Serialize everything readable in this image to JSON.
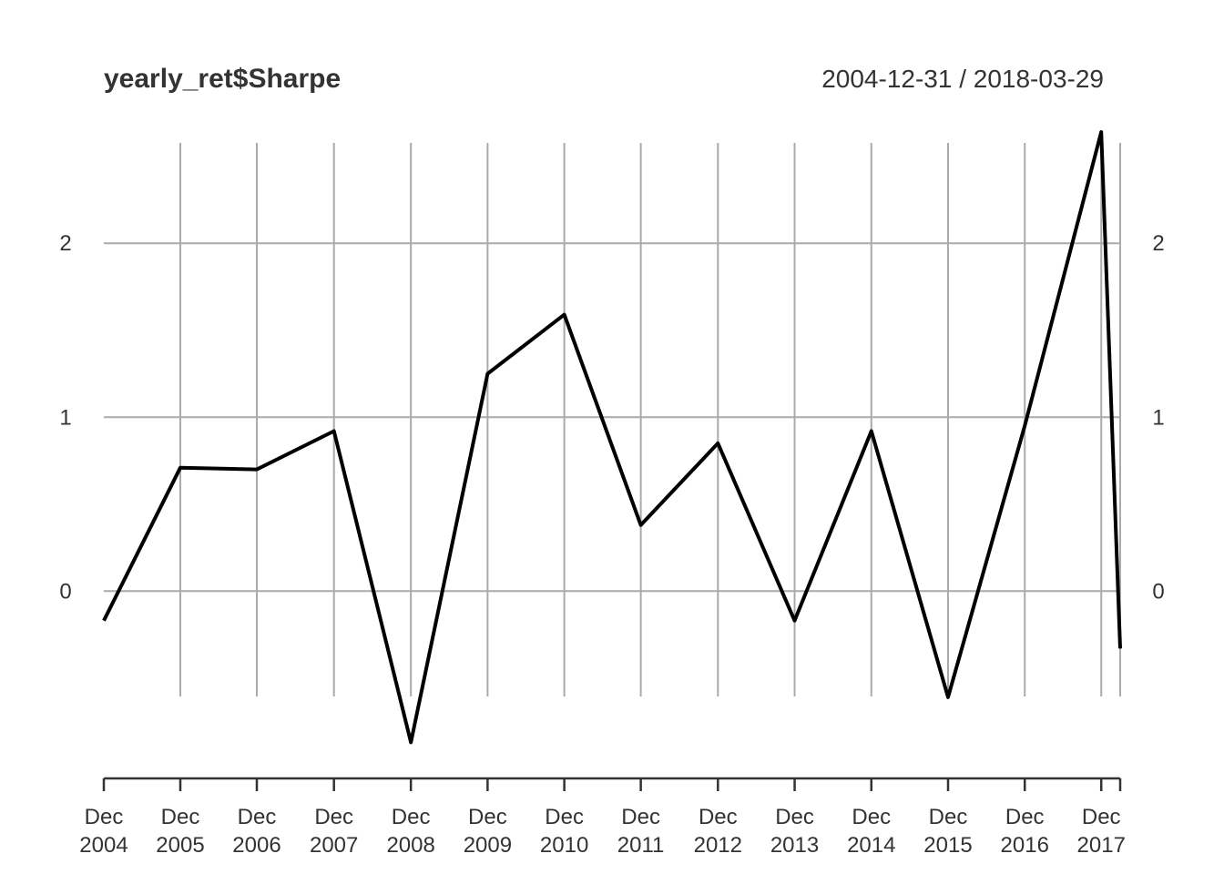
{
  "chart_data": {
    "type": "line",
    "title": "yearly_ret$Sharpe",
    "date_range": "2004-12-31 / 2018-03-29",
    "x": [
      "2004-12-31",
      "2005-12-30",
      "2006-12-29",
      "2007-12-31",
      "2008-12-31",
      "2009-12-31",
      "2010-12-31",
      "2011-12-30",
      "2012-12-31",
      "2013-12-31",
      "2014-12-31",
      "2015-12-31",
      "2016-12-30",
      "2017-12-29",
      "2018-03-29"
    ],
    "series": [
      {
        "values": [
          -0.17,
          0.71,
          0.7,
          0.92,
          -0.87,
          1.25,
          1.59,
          0.38,
          0.85,
          -0.17,
          0.92,
          -0.61,
          0.95,
          2.64,
          -0.33
        ]
      }
    ],
    "x_ticks": [
      {
        "date": "2004-12-31",
        "line1": "Dec",
        "line2": "2004"
      },
      {
        "date": "2005-12-30",
        "line1": "Dec",
        "line2": "2005"
      },
      {
        "date": "2006-12-29",
        "line1": "Dec",
        "line2": "2006"
      },
      {
        "date": "2007-12-31",
        "line1": "Dec",
        "line2": "2007"
      },
      {
        "date": "2008-12-31",
        "line1": "Dec",
        "line2": "2008"
      },
      {
        "date": "2009-12-31",
        "line1": "Dec",
        "line2": "2009"
      },
      {
        "date": "2010-12-31",
        "line1": "Dec",
        "line2": "2010"
      },
      {
        "date": "2011-12-30",
        "line1": "Dec",
        "line2": "2011"
      },
      {
        "date": "2012-12-31",
        "line1": "Dec",
        "line2": "2012"
      },
      {
        "date": "2013-12-31",
        "line1": "Dec",
        "line2": "2013"
      },
      {
        "date": "2014-12-31",
        "line1": "Dec",
        "line2": "2014"
      },
      {
        "date": "2015-12-31",
        "line1": "Dec",
        "line2": "2015"
      },
      {
        "date": "2016-12-30",
        "line1": "Dec",
        "line2": "2016"
      },
      {
        "date": "2017-12-29",
        "line1": "Dec",
        "line2": "2017"
      }
    ],
    "y_ticks": [
      0,
      1,
      2
    ],
    "ylim": [
      -0.92,
      2.64
    ],
    "grid": true,
    "legend": "none",
    "line_color": "#000000",
    "grid_color": "#aaaaaa"
  }
}
